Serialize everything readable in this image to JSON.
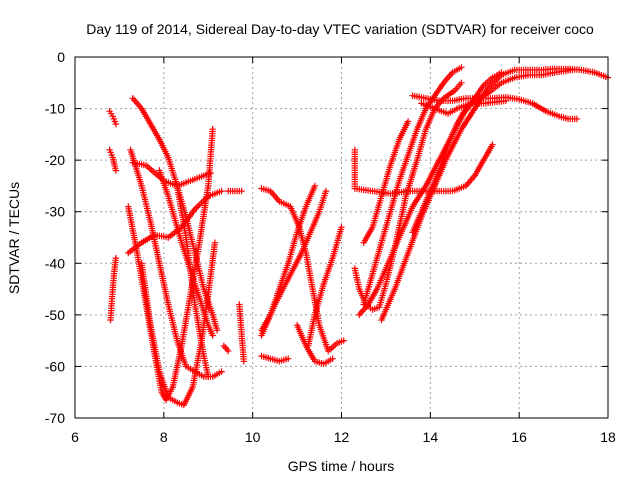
{
  "chart_data": {
    "type": "scatter",
    "title": "Day 119 of 2014, Sidereal Day-to-day VTEC variation (SDTVAR) for receiver coco",
    "xlabel": "GPS time / hours",
    "ylabel": "SDTVAR / TECUs",
    "xlim": [
      6,
      18
    ],
    "ylim": [
      -70,
      0
    ],
    "xticks": [
      "6",
      "8",
      "10",
      "12",
      "14",
      "16",
      "18"
    ],
    "yticks": [
      "0",
      "-10",
      "-20",
      "-30",
      "-40",
      "-50",
      "-60",
      "-70"
    ],
    "grid": true,
    "legend": "none",
    "marker": "plus",
    "color": "#ff0000",
    "series": [
      {
        "points": [
          [
            6.78,
            -10.5
          ],
          [
            6.85,
            -11.5
          ],
          [
            6.92,
            -13
          ]
        ]
      },
      {
        "points": [
          [
            6.78,
            -18
          ],
          [
            6.85,
            -19.5
          ],
          [
            6.92,
            -22
          ]
        ]
      },
      {
        "points": [
          [
            6.8,
            -51
          ],
          [
            6.84,
            -46
          ],
          [
            6.88,
            -42
          ],
          [
            6.92,
            -39
          ]
        ]
      },
      {
        "points": [
          [
            7.2,
            -38
          ],
          [
            7.5,
            -36
          ],
          [
            7.8,
            -34.5
          ],
          [
            8.1,
            -35
          ],
          [
            8.4,
            -33
          ],
          [
            8.7,
            -29.5
          ],
          [
            9.0,
            -27
          ],
          [
            9.3,
            -26
          ]
        ]
      },
      {
        "points": [
          [
            7.3,
            -8
          ],
          [
            7.5,
            -10
          ],
          [
            7.7,
            -13
          ],
          [
            7.9,
            -16
          ],
          [
            8.1,
            -19.5
          ],
          [
            8.3,
            -25
          ],
          [
            8.5,
            -31
          ],
          [
            8.7,
            -38
          ],
          [
            8.9,
            -45
          ],
          [
            9.1,
            -50
          ],
          [
            9.2,
            -53
          ]
        ]
      },
      {
        "points": [
          [
            7.25,
            -18
          ],
          [
            7.5,
            -25
          ],
          [
            7.7,
            -32
          ],
          [
            7.9,
            -40
          ],
          [
            8.1,
            -48
          ],
          [
            8.3,
            -55
          ],
          [
            8.5,
            -60
          ],
          [
            8.7,
            -61
          ],
          [
            8.9,
            -62
          ],
          [
            9.1,
            -62
          ],
          [
            9.3,
            -61
          ]
        ]
      },
      {
        "points": [
          [
            7.3,
            -20.5
          ],
          [
            7.6,
            -21
          ],
          [
            8.0,
            -24
          ],
          [
            8.3,
            -25
          ],
          [
            8.6,
            -24
          ],
          [
            8.9,
            -23
          ],
          [
            9.05,
            -22.5
          ]
        ]
      },
      {
        "points": [
          [
            7.2,
            -29
          ],
          [
            7.4,
            -38
          ],
          [
            7.6,
            -48
          ],
          [
            7.8,
            -58
          ],
          [
            7.95,
            -65
          ],
          [
            8.05,
            -66.5
          ],
          [
            8.2,
            -64
          ],
          [
            8.4,
            -56
          ],
          [
            8.6,
            -46
          ],
          [
            8.8,
            -36
          ],
          [
            9.0,
            -25
          ],
          [
            9.1,
            -14
          ]
        ]
      },
      {
        "points": [
          [
            7.5,
            -40
          ],
          [
            7.7,
            -52
          ],
          [
            7.9,
            -61
          ],
          [
            8.1,
            -66
          ],
          [
            8.3,
            -67
          ],
          [
            8.45,
            -67.5
          ],
          [
            8.65,
            -64
          ],
          [
            8.85,
            -55
          ],
          [
            9.0,
            -46
          ],
          [
            9.15,
            -36
          ]
        ]
      },
      {
        "points": [
          [
            7.9,
            -22
          ],
          [
            8.1,
            -27
          ],
          [
            8.4,
            -36
          ],
          [
            8.7,
            -44
          ],
          [
            9.0,
            -52
          ],
          [
            9.1,
            -54
          ]
        ]
      },
      {
        "points": [
          [
            8.3,
            -25
          ],
          [
            8.5,
            -35
          ],
          [
            8.7,
            -48
          ],
          [
            8.9,
            -58
          ],
          [
            9.0,
            -62
          ]
        ]
      },
      {
        "points": [
          [
            9.45,
            -26
          ],
          [
            9.75,
            -26
          ]
        ]
      },
      {
        "points": [
          [
            9.7,
            -48
          ],
          [
            9.8,
            -59
          ]
        ]
      },
      {
        "points": [
          [
            9.35,
            -56
          ],
          [
            9.45,
            -57
          ]
        ]
      },
      {
        "points": [
          [
            10.2,
            -25.5
          ],
          [
            10.4,
            -26
          ],
          [
            10.6,
            -28
          ],
          [
            10.85,
            -29
          ],
          [
            11.05,
            -33
          ],
          [
            11.2,
            -38
          ],
          [
            11.35,
            -45
          ],
          [
            11.5,
            -52
          ],
          [
            11.7,
            -57
          ],
          [
            11.9,
            -55.5
          ],
          [
            12.05,
            -55
          ]
        ]
      },
      {
        "points": [
          [
            10.2,
            -58
          ],
          [
            10.4,
            -58.5
          ],
          [
            10.6,
            -59
          ],
          [
            10.8,
            -58.5
          ]
        ]
      },
      {
        "points": [
          [
            10.2,
            -53
          ],
          [
            10.4,
            -50
          ],
          [
            10.6,
            -45
          ],
          [
            10.8,
            -40
          ],
          [
            11.0,
            -34
          ],
          [
            11.2,
            -29
          ],
          [
            11.4,
            -25
          ]
        ]
      },
      {
        "points": [
          [
            10.2,
            -54
          ],
          [
            10.5,
            -48
          ],
          [
            10.8,
            -43
          ],
          [
            11.1,
            -38
          ],
          [
            11.3,
            -34
          ],
          [
            11.5,
            -30
          ],
          [
            11.65,
            -26
          ]
        ]
      },
      {
        "points": [
          [
            11.0,
            -52
          ],
          [
            11.2,
            -56
          ],
          [
            11.4,
            -59
          ],
          [
            11.6,
            -59.5
          ],
          [
            11.8,
            -58.5
          ]
        ]
      },
      {
        "points": [
          [
            11.25,
            -56
          ],
          [
            11.4,
            -50
          ],
          [
            11.6,
            -44
          ],
          [
            11.8,
            -39
          ],
          [
            12.0,
            -33
          ]
        ]
      },
      {
        "points": [
          [
            12.3,
            -41
          ],
          [
            12.4,
            -45
          ],
          [
            12.55,
            -48
          ],
          [
            12.7,
            -49
          ],
          [
            12.85,
            -48.5
          ],
          [
            13.0,
            -44
          ],
          [
            13.2,
            -37
          ],
          [
            13.45,
            -27
          ],
          [
            13.7,
            -20
          ],
          [
            13.9,
            -14
          ],
          [
            14.1,
            -10
          ],
          [
            14.3,
            -8
          ],
          [
            14.55,
            -6.5
          ],
          [
            14.7,
            -5
          ]
        ]
      },
      {
        "points": [
          [
            12.4,
            -50
          ],
          [
            12.6,
            -48
          ],
          [
            12.8,
            -45
          ],
          [
            13.05,
            -40
          ],
          [
            13.3,
            -35
          ],
          [
            13.6,
            -29
          ],
          [
            13.9,
            -25
          ],
          [
            14.2,
            -20
          ],
          [
            14.5,
            -15
          ],
          [
            14.75,
            -11
          ],
          [
            15.0,
            -8
          ],
          [
            15.2,
            -5.5
          ],
          [
            15.4,
            -4
          ],
          [
            15.6,
            -3
          ]
        ]
      },
      {
        "points": [
          [
            12.5,
            -36
          ],
          [
            12.7,
            -33
          ],
          [
            12.9,
            -27
          ],
          [
            13.1,
            -21
          ],
          [
            13.3,
            -16
          ],
          [
            13.5,
            -12.5
          ]
        ]
      },
      {
        "points": [
          [
            12.5,
            -48
          ],
          [
            12.7,
            -42
          ],
          [
            12.9,
            -36
          ],
          [
            13.1,
            -30
          ],
          [
            13.3,
            -24
          ],
          [
            13.5,
            -19
          ],
          [
            13.7,
            -14
          ],
          [
            13.9,
            -10
          ],
          [
            14.1,
            -7.5
          ],
          [
            14.3,
            -5
          ],
          [
            14.5,
            -3
          ],
          [
            14.7,
            -2
          ]
        ]
      },
      {
        "points": [
          [
            12.9,
            -51
          ],
          [
            13.2,
            -45
          ],
          [
            13.5,
            -38
          ],
          [
            13.8,
            -31
          ],
          [
            14.1,
            -25
          ],
          [
            14.4,
            -19
          ],
          [
            14.7,
            -14
          ],
          [
            15.0,
            -10
          ],
          [
            15.3,
            -6
          ],
          [
            15.6,
            -3.5
          ],
          [
            15.9,
            -2.5
          ],
          [
            16.2,
            -2.5
          ],
          [
            16.5,
            -2.5
          ],
          [
            16.8,
            -2.3
          ],
          [
            17.1,
            -2.3
          ],
          [
            17.4,
            -2.5
          ],
          [
            17.7,
            -3
          ],
          [
            18.0,
            -4
          ]
        ]
      },
      {
        "points": [
          [
            13.6,
            -34
          ],
          [
            13.8,
            -30
          ],
          [
            14.0,
            -26
          ],
          [
            14.2,
            -22
          ],
          [
            14.4,
            -17
          ],
          [
            14.6,
            -13
          ],
          [
            14.8,
            -10
          ],
          [
            15.0,
            -8.5
          ],
          [
            15.3,
            -7
          ],
          [
            15.6,
            -5
          ],
          [
            15.9,
            -4
          ],
          [
            16.2,
            -3.5
          ],
          [
            16.5,
            -3.5
          ],
          [
            16.8,
            -3
          ],
          [
            17.2,
            -2.5
          ]
        ]
      },
      {
        "points": [
          [
            12.3,
            -18
          ],
          [
            12.3,
            -25.5
          ],
          [
            12.7,
            -26
          ],
          [
            13.1,
            -26.5
          ],
          [
            13.5,
            -26
          ],
          [
            13.9,
            -26
          ],
          [
            14.2,
            -26
          ],
          [
            14.5,
            -26
          ],
          [
            14.8,
            -25
          ],
          [
            15.0,
            -23
          ],
          [
            15.2,
            -20
          ],
          [
            15.4,
            -17
          ]
        ]
      },
      {
        "points": [
          [
            13.6,
            -7.5
          ],
          [
            13.9,
            -8
          ],
          [
            14.2,
            -8.5
          ],
          [
            14.5,
            -8.5
          ],
          [
            14.8,
            -8
          ],
          [
            15.1,
            -8
          ],
          [
            15.4,
            -8
          ],
          [
            15.7,
            -7.8
          ],
          [
            16.0,
            -8.2
          ],
          [
            16.3,
            -9
          ],
          [
            16.6,
            -10.5
          ],
          [
            16.9,
            -11.5
          ],
          [
            17.1,
            -12
          ],
          [
            17.3,
            -12
          ]
        ]
      },
      {
        "points": [
          [
            13.8,
            -9
          ],
          [
            14.1,
            -10
          ],
          [
            14.4,
            -11
          ],
          [
            14.6,
            -10
          ],
          [
            14.9,
            -9
          ],
          [
            15.2,
            -9
          ],
          [
            15.5,
            -8.7
          ],
          [
            15.7,
            -8.5
          ]
        ]
      }
    ]
  }
}
